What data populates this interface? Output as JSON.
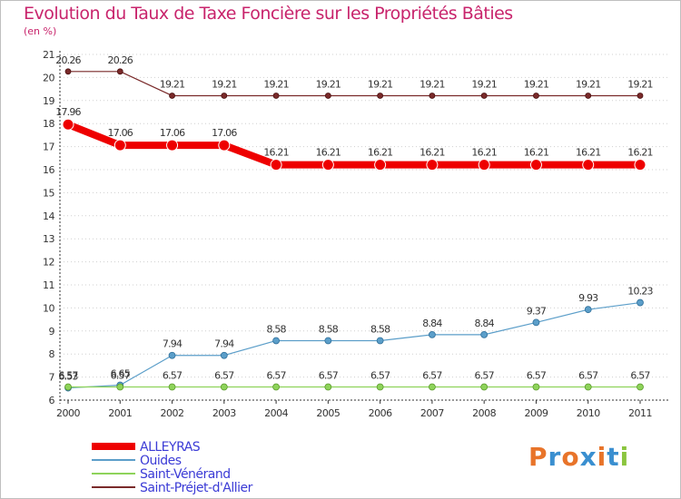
{
  "title": "Evolution du Taux de Taxe Foncière sur les Propriétés Bâties",
  "unit": "(en %)",
  "logo": {
    "text": "Proxiti",
    "colors": [
      "#e8742a",
      "#3a8fd0",
      "#e8742a",
      "#3a8fd0",
      "#e8742a",
      "#3a8fd0",
      "#8bc53f"
    ]
  },
  "chart_data": {
    "type": "line",
    "title": "Evolution du Taux de Taxe Foncière sur les Propriétés Bâties",
    "ylabel": "(en %)",
    "xlabel": "",
    "categories": [
      "2000",
      "2001",
      "2002",
      "2003",
      "2004",
      "2005",
      "2006",
      "2007",
      "2008",
      "2009",
      "2010",
      "2011"
    ],
    "ylim": [
      6,
      21
    ],
    "yticks": [
      6,
      7,
      8,
      9,
      10,
      11,
      12,
      13,
      14,
      15,
      16,
      17,
      18,
      19,
      20,
      21
    ],
    "legend_position": "bottom-left",
    "series": [
      {
        "name": "Saint-Préjet-d'Allier",
        "color": "#7a2a2a",
        "width": 1.2,
        "marker": 3,
        "values": [
          20.26,
          20.26,
          19.21,
          19.21,
          19.21,
          19.21,
          19.21,
          19.21,
          19.21,
          19.21,
          19.21,
          19.21
        ],
        "labels": [
          "20.26",
          "20.26",
          "19.21",
          "19.21",
          "19.21",
          "19.21",
          "19.21",
          "19.21",
          "19.21",
          "19.21",
          "19.21",
          "19.21"
        ]
      },
      {
        "name": "ALLEYRAS",
        "color": "#ee0000",
        "width": 8,
        "marker": 6,
        "values": [
          17.96,
          17.06,
          17.06,
          17.06,
          16.21,
          16.21,
          16.21,
          16.21,
          16.21,
          16.21,
          16.21,
          16.21
        ],
        "labels": [
          "17.96",
          "17.06",
          "17.06",
          "17.06",
          "16.21",
          "16.21",
          "16.21",
          "16.21",
          "16.21",
          "16.21",
          "16.21",
          "16.21"
        ]
      },
      {
        "name": "Ouides",
        "color": "#5b9ec9",
        "width": 1.2,
        "marker": 3.5,
        "values": [
          6.53,
          6.65,
          7.94,
          7.94,
          8.58,
          8.58,
          8.58,
          8.84,
          8.84,
          9.37,
          9.93,
          10.23
        ],
        "labels": [
          "6.53",
          "6.65",
          "7.94",
          "7.94",
          "8.58",
          "8.58",
          "8.58",
          "8.84",
          "8.84",
          "9.37",
          "9.93",
          "10.23"
        ]
      },
      {
        "name": "Saint-Vénérand",
        "color": "#8ed35a",
        "width": 1.2,
        "marker": 3.5,
        "values": [
          6.57,
          6.57,
          6.57,
          6.57,
          6.57,
          6.57,
          6.57,
          6.57,
          6.57,
          6.57,
          6.57,
          6.57
        ],
        "labels": [
          "6.57",
          "6.57",
          "6.57",
          "6.57",
          "6.57",
          "6.57",
          "6.57",
          "6.57",
          "6.57",
          "6.57",
          "6.57",
          "6.57"
        ]
      }
    ],
    "legend": [
      "ALLEYRAS",
      "Ouides",
      "Saint-Vénérand",
      "Saint-Préjet-d'Allier"
    ]
  }
}
